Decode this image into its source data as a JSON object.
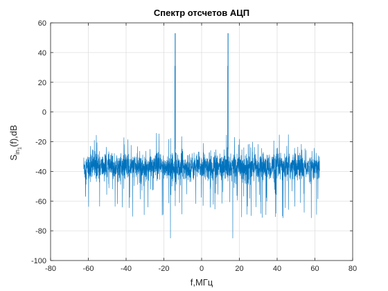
{
  "chart_data": {
    "type": "line",
    "title": "Спектр отсчетов АЦП",
    "xlabel": "f,МГц",
    "ylabel": {
      "main": "S",
      "sub1": "in",
      "sub2": "1",
      "tail": "(f),dB"
    },
    "xlim": [
      -80,
      80
    ],
    "ylim": [
      -100,
      60
    ],
    "xticks": [
      -80,
      -60,
      -40,
      -20,
      0,
      20,
      40,
      60,
      80
    ],
    "yticks": [
      -100,
      -80,
      -60,
      -40,
      -20,
      0,
      20,
      40,
      60
    ],
    "grid": true,
    "line_color": "#0072bd",
    "noise": {
      "x_range": [
        -62.5,
        62.5
      ],
      "center_level": -37,
      "typical_top": -27,
      "typical_bottom": -50,
      "max_level": -14,
      "min_level": -72
    },
    "peaks": [
      {
        "x": -14,
        "y": 53
      },
      {
        "x": 14,
        "y": 53
      }
    ],
    "shoulders": [
      {
        "x": -14.2,
        "y": 31
      },
      {
        "x": 13.8,
        "y": 31
      }
    ],
    "deep_nulls": [
      {
        "x": -16.5,
        "y": -85
      },
      {
        "x": 16.5,
        "y": -85
      }
    ]
  }
}
